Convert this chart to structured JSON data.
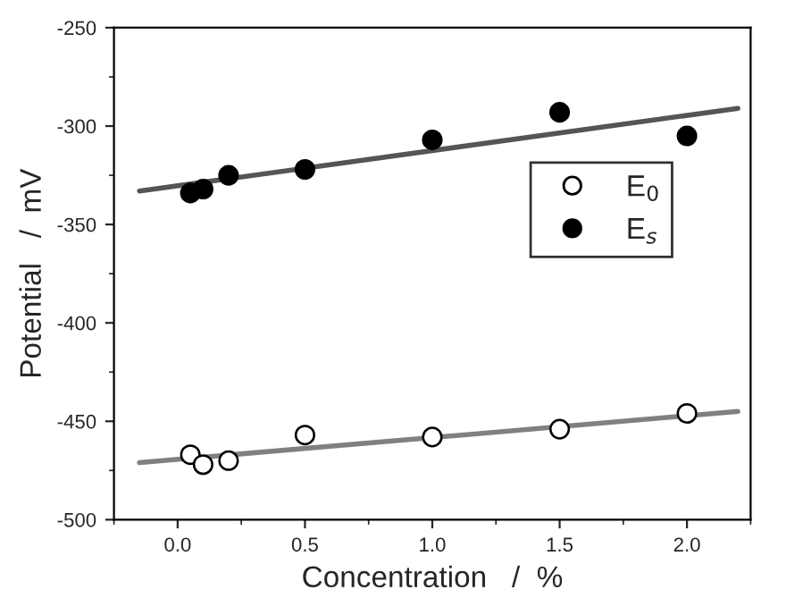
{
  "chart_data": {
    "type": "scatter",
    "xlabel": "Concentration   /  %",
    "ylabel": "Potential   /  mV",
    "xlim": [
      -0.25,
      2.25
    ],
    "ylim": [
      -500,
      -250
    ],
    "xticks": [
      {
        "value": 0,
        "label": "0.0"
      },
      {
        "value": 0.5,
        "label": "0.5"
      },
      {
        "value": 1,
        "label": "1.0"
      },
      {
        "value": 1.5,
        "label": "1.5"
      },
      {
        "value": 2,
        "label": "2.0"
      }
    ],
    "yticks": [
      -500,
      -450,
      -400,
      -350,
      -300,
      -250
    ],
    "legend": "right",
    "grid": false,
    "series": [
      {
        "name": "E$_{0}$",
        "marker": "circle",
        "color": "#ffffff",
        "x": [
          0.05,
          0.1,
          0.2,
          0.5,
          1.0,
          1.5,
          2.0
        ],
        "values": [
          -467,
          -472,
          -470,
          -457,
          -458,
          -454,
          -446
        ]
      },
      {
        "name": "E$_{s}$",
        "marker": "circle",
        "color": "#000000",
        "x": [
          0.05,
          0.1,
          0.2,
          0.5,
          1.0,
          1.5,
          2.0
        ],
        "values": [
          -334,
          -332,
          -325,
          -322,
          -307,
          -293,
          -305
        ]
      },
      {
        "type": "line",
        "color": "#555555",
        "x": [
          -0.15,
          2.2
        ],
        "values": [
          -333,
          -291
        ]
      },
      {
        "type": "line",
        "color": "#808080",
        "x": [
          -0.15,
          2.2
        ],
        "values": [
          -471,
          -445
        ]
      }
    ]
  }
}
